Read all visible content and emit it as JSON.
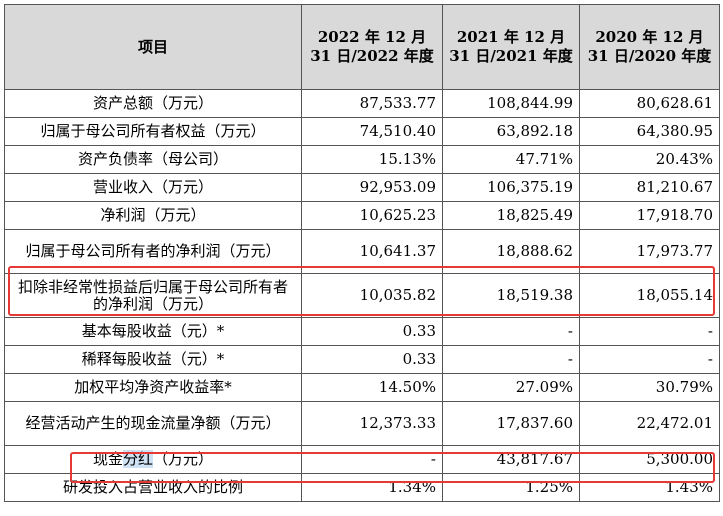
{
  "table": {
    "headers": [
      "项目",
      "2022 年 12 月 31 日/2022 年度",
      "2021 年 12 月 31 日/2021 年度",
      "2020 年 12 月 31 日/2020 年度"
    ],
    "rows": [
      {
        "label": "资产总额（万元）",
        "v2022": "87,533.77",
        "v2021": "108,844.99",
        "v2020": "80,628.61"
      },
      {
        "label": "归属于母公司所有者权益（万元）",
        "v2022": "74,510.40",
        "v2021": "63,892.18",
        "v2020": "64,380.95"
      },
      {
        "label": "资产负债率（母公司）",
        "v2022": "15.13%",
        "v2021": "47.71%",
        "v2020": "20.43%"
      },
      {
        "label": "营业收入（万元）",
        "v2022": "92,953.09",
        "v2021": "106,375.19",
        "v2020": "81,210.67"
      },
      {
        "label": "净利润（万元）",
        "v2022": "10,625.23",
        "v2021": "18,825.49",
        "v2020": "17,918.70"
      },
      {
        "label": "归属于母公司所有者的净利润（万元）",
        "v2022": "10,641.37",
        "v2021": "18,888.62",
        "v2020": "17,973.77"
      },
      {
        "label": "扣除非经常性损益后归属于母公司所有者的净利润（万元）",
        "v2022": "10,035.82",
        "v2021": "18,519.38",
        "v2020": "18,055.14"
      },
      {
        "label": "基本每股收益（元）*",
        "v2022": "0.33",
        "v2021": "-",
        "v2020": "-"
      },
      {
        "label": "稀释每股收益（元）*",
        "v2022": "0.33",
        "v2021": "-",
        "v2020": "-"
      },
      {
        "label": "加权平均净资产收益率*",
        "v2022": "14.50%",
        "v2021": "27.09%",
        "v2020": "30.79%"
      },
      {
        "label": "经营活动产生的现金流量净额（万元）",
        "v2022": "12,373.33",
        "v2021": "17,837.60",
        "v2020": "22,472.01"
      },
      {
        "label_pre": "现金",
        "label_sel": "分红",
        "label_post": "（万元）",
        "v2022": "-",
        "v2021": "43,817.67",
        "v2020": "5,300.00"
      },
      {
        "label": "研发投入占营业收入的比例",
        "v2022": "1.34%",
        "v2021": "1.25%",
        "v2020": "1.43%"
      }
    ]
  },
  "highlight_color": "#e53935",
  "selection_color": "#cfe2f3"
}
